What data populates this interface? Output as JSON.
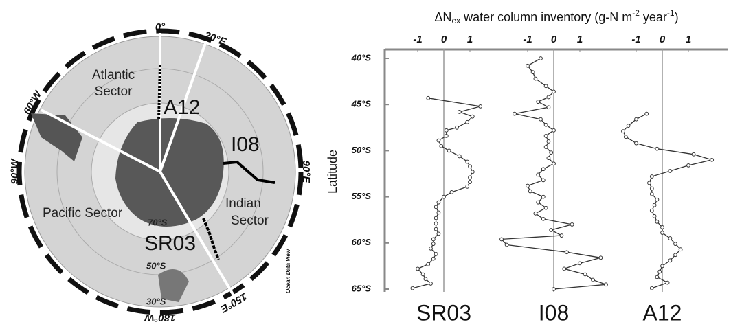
{
  "map": {
    "labels": [
      "0°",
      "20°E",
      "60°W",
      "90°W",
      "90°E",
      "180°W",
      "150°E",
      "Atlantic",
      "Sector",
      "A12",
      "I08",
      "Pacific Sector",
      "Indian",
      "Sector",
      "70°S",
      "50°S",
      "30°S",
      "SR03",
      "Ocean Data View"
    ]
  },
  "axis_title": [
    "ΔN",
    "ex",
    " water column inventory (g-N m",
    "-2",
    " year",
    "-1",
    ")"
  ],
  "ylabel": "Latitude",
  "chart_data": [
    {
      "type": "line",
      "title": "SR03",
      "color": "#333333",
      "y": [
        44.3,
        45.2,
        45.8,
        46.3,
        46.9,
        47.5,
        47.8,
        48.4,
        48.9,
        49.5,
        50.0,
        50.6,
        51.2,
        51.7,
        52.3,
        52.9,
        53.4,
        53.9,
        54.5,
        55.0,
        55.6,
        56.1,
        56.7,
        57.3,
        57.9,
        58.5,
        59.0,
        59.6,
        60.1,
        60.6,
        61.2,
        61.7,
        62.3,
        62.8,
        63.4,
        63.9,
        64.4,
        64.9
      ],
      "values": [
        -0.6,
        1.4,
        0.6,
        1.1,
        0.9,
        0.5,
        0.1,
        0.1,
        -0.2,
        -0.1,
        0.2,
        0.6,
        0.9,
        1.0,
        1.1,
        1.0,
        1.0,
        0.9,
        0.3,
        0.0,
        -0.2,
        -0.3,
        -0.2,
        -0.3,
        -0.3,
        -0.3,
        -0.2,
        -0.4,
        -0.4,
        -0.5,
        -0.3,
        -0.4,
        -0.6,
        -1.0,
        -0.8,
        -0.7,
        -0.5,
        -1.2
      ],
      "xlim": [
        -2.25,
        2.25
      ],
      "xticks": [
        -1,
        0,
        1
      ],
      "ylim": [
        40,
        65
      ],
      "yticks": [
        {
          "value": 40,
          "label": "40°S"
        },
        {
          "value": 45,
          "label": "45°S"
        },
        {
          "value": 50,
          "label": "50°S"
        },
        {
          "value": 55,
          "label": "55°S"
        },
        {
          "value": 60,
          "label": "60°S"
        },
        {
          "value": 65,
          "label": "65°S"
        }
      ]
    },
    {
      "type": "line",
      "title": "I08",
      "color": "#333333",
      "y": [
        40.0,
        40.8,
        41.5,
        42.2,
        43.0,
        43.6,
        44.2,
        44.7,
        45.3,
        46.0,
        46.6,
        47.2,
        47.8,
        48.4,
        49.0,
        49.6,
        50.2,
        50.8,
        51.4,
        52.0,
        52.6,
        53.2,
        53.8,
        54.4,
        55.0,
        55.6,
        56.2,
        56.8,
        57.4,
        58.0,
        58.6,
        59.2,
        59.6,
        60.2,
        61.0,
        61.6,
        62.2,
        62.8,
        63.4,
        64.0,
        64.5,
        65.0
      ],
      "values": [
        -0.5,
        -1.0,
        -0.8,
        -0.7,
        -0.3,
        0.0,
        -0.2,
        -0.6,
        -0.2,
        -1.5,
        -0.5,
        -0.3,
        0.0,
        -0.3,
        -0.2,
        -0.3,
        -0.1,
        -0.2,
        0.0,
        -0.4,
        -0.6,
        -0.4,
        -1.0,
        -0.9,
        -0.4,
        -0.6,
        -0.3,
        -0.7,
        -0.4,
        0.7,
        -0.1,
        0.3,
        -2.0,
        -1.8,
        0.5,
        1.8,
        1.0,
        0.4,
        1.2,
        1.5,
        2.0,
        0.0
      ],
      "xlim": [
        -2.25,
        2.25
      ],
      "xticks": [
        -1,
        0,
        1
      ],
      "ylim": [
        40,
        65
      ]
    },
    {
      "type": "line",
      "title": "A12",
      "color": "#333333",
      "y": [
        46.0,
        46.6,
        47.3,
        47.9,
        48.5,
        49.2,
        49.8,
        50.4,
        51.0,
        51.6,
        52.2,
        52.8,
        53.5,
        54.1,
        54.7,
        55.3,
        55.9,
        56.5,
        57.1,
        57.7,
        58.3,
        58.9,
        59.5,
        60.1,
        60.7,
        61.3,
        61.9,
        62.5,
        63.1,
        63.7,
        64.3,
        64.9
      ],
      "values": [
        -0.6,
        -1.0,
        -1.3,
        -1.5,
        -1.4,
        -1.0,
        -0.2,
        1.2,
        1.9,
        1.0,
        0.3,
        -0.4,
        -0.5,
        -0.4,
        -0.4,
        -0.2,
        -0.3,
        -0.4,
        -0.3,
        -0.2,
        0.0,
        0.0,
        0.3,
        0.5,
        0.7,
        0.5,
        0.3,
        0.0,
        -0.1,
        -0.2,
        0.2,
        -0.4
      ],
      "xlim": [
        -2.25,
        2.25
      ],
      "xticks": [
        -1,
        0,
        1
      ],
      "ylim": [
        40,
        65
      ]
    }
  ]
}
